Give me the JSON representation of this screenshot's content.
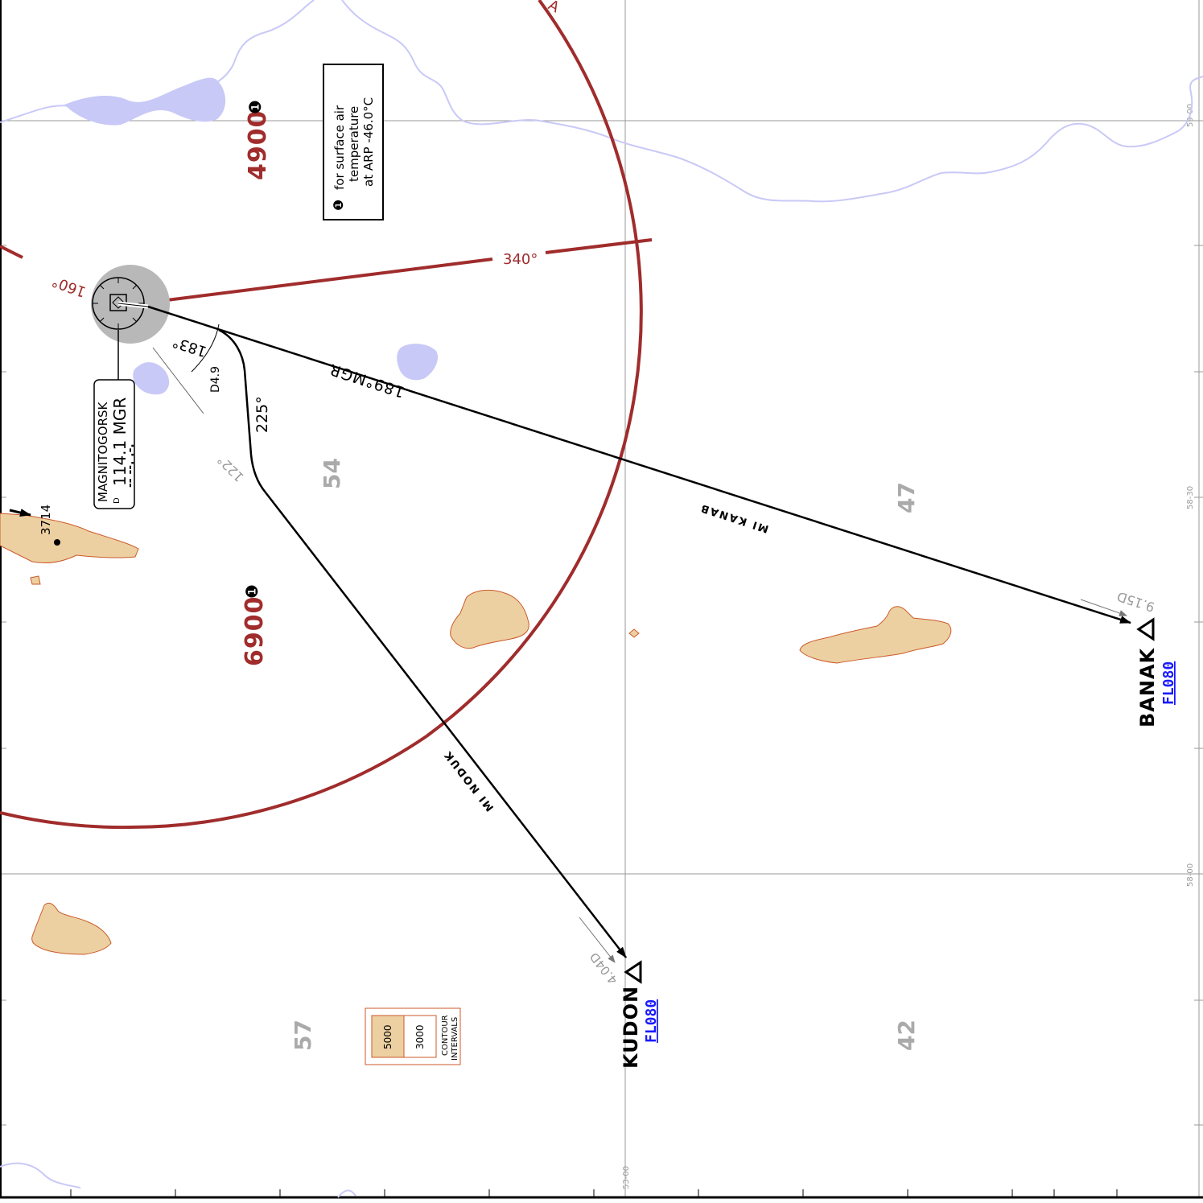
{
  "map": {
    "colors": {
      "msa_ring": "#a02c2c",
      "water": "#c9c9f7",
      "terrain_fill": "#ecd0a1",
      "terrain_edge": "#cc5a2a",
      "grid": "#999999",
      "flight_level": "#1a1aff"
    },
    "msa": {
      "north_sector_altitude": "4900",
      "south_sector_altitude": "6900",
      "sector_bearing_340": "340°",
      "sector_bearing_160": "160°",
      "note_marker": "❶",
      "note_text_1": "for surface air",
      "note_text_2": "temperature",
      "note_text_3": "at ARP -46.0°C"
    },
    "navaid": {
      "name": "MAGNITOGORSK",
      "freq_ident": "114.1 MGR",
      "morse": "-- --. .-.",
      "dme_mark": "D"
    },
    "legs": {
      "kanab_label": "MI KANAB",
      "nodu_label": "MI NODUK",
      "radial_label": "189°MGR",
      "turn_course": "183°",
      "dme_arc": "D4.9",
      "course_225": "225°",
      "course_122": "122°"
    },
    "fixes": {
      "banak": {
        "name": "BANAK",
        "level": "FL080",
        "distance": "9.15D"
      },
      "kudon": {
        "name": "KUDON",
        "level": "FL080",
        "distance": "4.04D"
      }
    },
    "terrain": {
      "spot_elevation": "3714",
      "mora_54": "54",
      "mora_47": "47",
      "mora_57": "57",
      "mora_42": "42"
    },
    "contour_legend": {
      "value_high": "5000",
      "value_low": "3000",
      "caption_1": "CONTOUR",
      "caption_2": "INTERVALS"
    },
    "grid_labels": {
      "lat_59": "59-00",
      "lat_5830": "58-30",
      "lat_58": "58-00",
      "lon_53": "53-00"
    }
  }
}
